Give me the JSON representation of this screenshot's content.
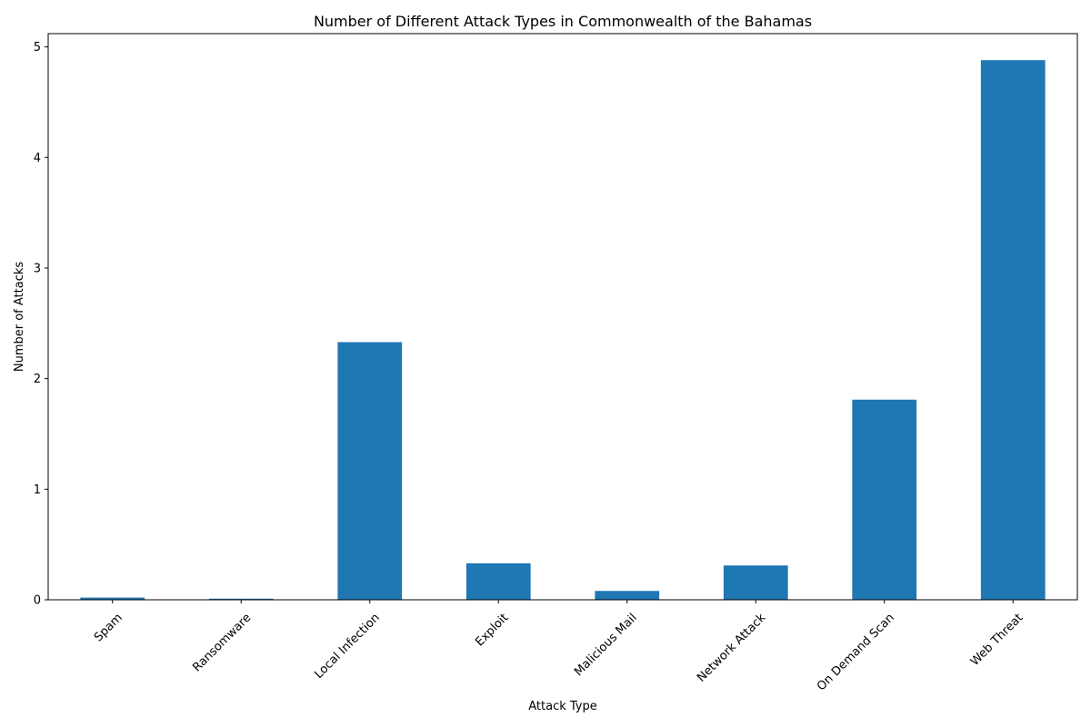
{
  "chart_data": {
    "type": "bar",
    "title": "Number of Different Attack Types in Commonwealth of the Bahamas",
    "xlabel": "Attack Type",
    "ylabel": "Number of Attacks",
    "categories": [
      "Spam",
      "Ransomware",
      "Local Infection",
      "Exploit",
      "Malicious Mail",
      "Network Attack",
      "On Demand Scan",
      "Web Threat"
    ],
    "values": [
      0.02,
      0.01,
      2.33,
      0.33,
      0.08,
      0.31,
      1.81,
      4.88
    ],
    "ylim": [
      0,
      5.12
    ],
    "yticks": [
      "0",
      "1",
      "2",
      "3",
      "4",
      "5"
    ],
    "bar_color": "#1f77b4",
    "grid": false,
    "legend": "none"
  }
}
